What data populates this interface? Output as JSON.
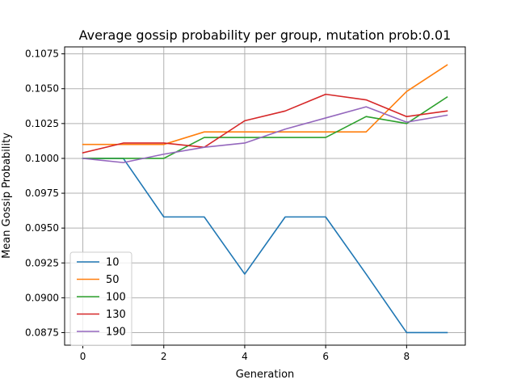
{
  "chart_data": {
    "type": "line",
    "title": "Average gossip probability per group, mutation prob:0.01",
    "xlabel": "Generation",
    "ylabel": "Mean Gossip Probability",
    "xlim": [
      -0.45,
      9.45
    ],
    "ylim": [
      0.0866,
      0.108
    ],
    "xticks": [
      0,
      2,
      4,
      6,
      8
    ],
    "xtick_labels": [
      "0",
      "2",
      "4",
      "6",
      "8"
    ],
    "yticks": [
      0.0875,
      0.09,
      0.0925,
      0.095,
      0.0975,
      0.1,
      0.1025,
      0.105,
      0.1075
    ],
    "ytick_labels": [
      "0.0875",
      "0.0900",
      "0.0925",
      "0.0950",
      "0.0975",
      "0.1000",
      "0.1025",
      "0.1050",
      "0.1075"
    ],
    "grid": true,
    "legend_position": "lower-left",
    "x": [
      0,
      1,
      2,
      3,
      4,
      5,
      6,
      7,
      8,
      9
    ],
    "series": [
      {
        "name": "10",
        "color": "#1f77b4",
        "values": [
          0.1,
          0.1,
          0.0958,
          0.0958,
          0.0917,
          0.0958,
          0.0958,
          0.0917,
          0.0875,
          0.0875
        ]
      },
      {
        "name": "50",
        "color": "#ff7f0e",
        "values": [
          0.101,
          0.101,
          0.101,
          0.1019,
          0.1019,
          0.1019,
          0.1019,
          0.1019,
          0.1048,
          0.1067
        ]
      },
      {
        "name": "100",
        "color": "#2ca02c",
        "values": [
          0.1,
          0.1,
          0.1,
          0.1015,
          0.1015,
          0.1015,
          0.1015,
          0.103,
          0.1025,
          0.1044
        ]
      },
      {
        "name": "130",
        "color": "#d62728",
        "values": [
          0.1004,
          0.1011,
          0.1011,
          0.1008,
          0.1027,
          0.1034,
          0.1046,
          0.1042,
          0.103,
          0.1034
        ]
      },
      {
        "name": "190",
        "color": "#9467bd",
        "values": [
          0.1,
          0.0997,
          0.1003,
          0.1008,
          0.1011,
          0.1021,
          0.1029,
          0.1037,
          0.1026,
          0.1031
        ]
      }
    ]
  }
}
